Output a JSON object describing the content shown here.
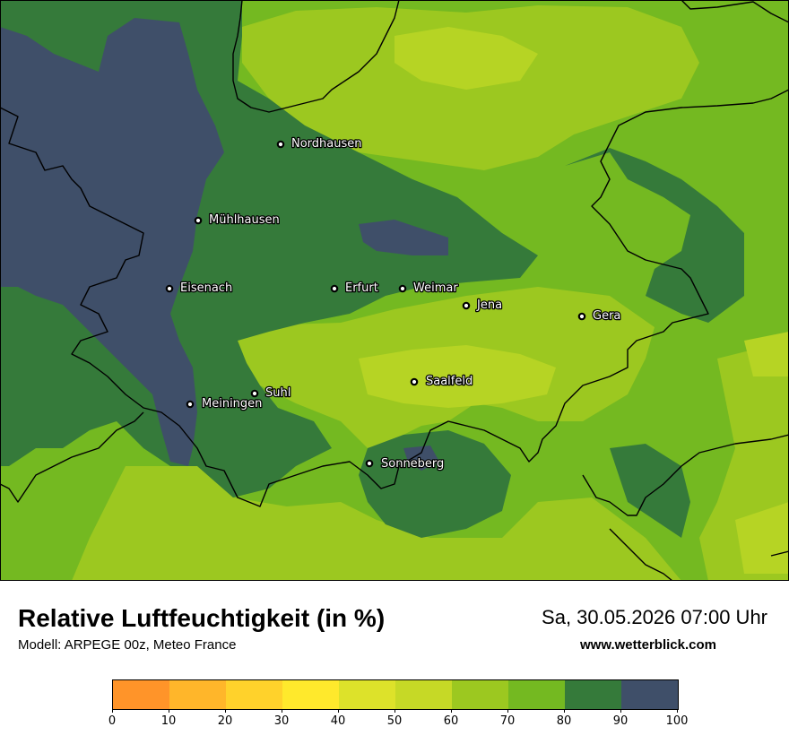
{
  "map": {
    "colors": {
      "c60_70": "#9cc820",
      "c70_80": "#74b921",
      "c80_90": "#357a3a",
      "c90_100": "#3f4f69",
      "c50_60": "#b6d424",
      "borders": "#000000"
    },
    "cities": [
      {
        "name": "Nordhausen"
      },
      {
        "name": "Mühlhausen"
      },
      {
        "name": "Eisenach"
      },
      {
        "name": "Erfurt"
      },
      {
        "name": "Weimar"
      },
      {
        "name": "Jena"
      },
      {
        "name": "Gera"
      },
      {
        "name": "Suhl"
      },
      {
        "name": "Meiningen"
      },
      {
        "name": "Saalfeld"
      },
      {
        "name": "Sonneberg"
      }
    ]
  },
  "footer": {
    "title": "Relative Luftfeuchtigkeit (in %)",
    "subtitle": "Modell: ARPEGE 00z, Meteo France",
    "datetime": "Sa, 30.05.2026 07:00 Uhr",
    "website": "www.wetterblick.com"
  },
  "legend": {
    "colors": [
      "#ff9429",
      "#ffb62a",
      "#ffd22b",
      "#ffe92c",
      "#dde22a",
      "#c6d926",
      "#9cc820",
      "#74b921",
      "#357a3a",
      "#3f4f69"
    ],
    "ticks": [
      "0",
      "10",
      "20",
      "30",
      "40",
      "50",
      "60",
      "70",
      "80",
      "90",
      "100"
    ]
  }
}
